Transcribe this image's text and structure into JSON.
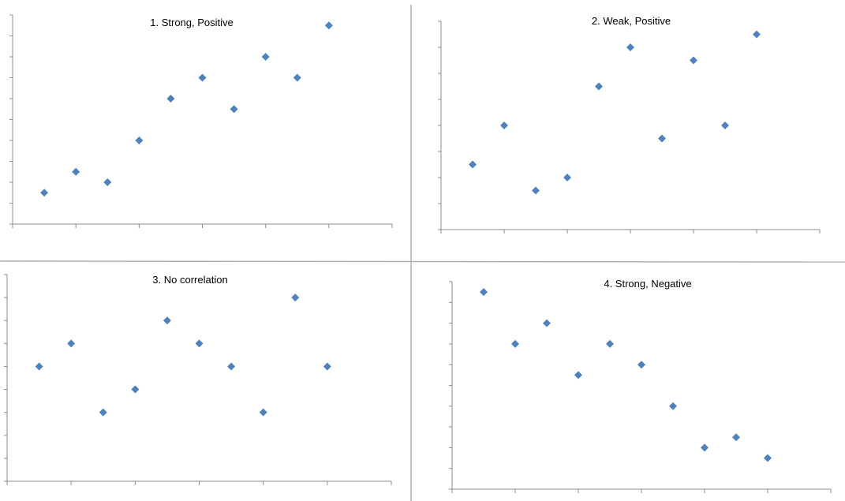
{
  "marker_color": "#4f81bd",
  "chart_data": [
    {
      "type": "scatter",
      "title": "1. Strong, Positive",
      "xlabel": "",
      "ylabel": "",
      "grid": false,
      "xlim": [
        0,
        12
      ],
      "ylim": [
        0,
        10
      ],
      "x": [
        1,
        2,
        3,
        4,
        5,
        6,
        7,
        8,
        9,
        10
      ],
      "y": [
        1.5,
        2.5,
        2,
        4,
        6,
        7,
        5.5,
        8,
        7,
        9.5
      ]
    },
    {
      "type": "scatter",
      "title": "2. Weak, Positive",
      "xlabel": "",
      "ylabel": "",
      "grid": false,
      "xlim": [
        0,
        12
      ],
      "ylim": [
        0,
        8
      ],
      "x": [
        1,
        2,
        3,
        4,
        5,
        6,
        7,
        8,
        9,
        10
      ],
      "y": [
        2.5,
        4,
        1.5,
        2,
        5.5,
        7,
        3.5,
        6.5,
        4,
        7.5
      ]
    },
    {
      "type": "scatter",
      "title": "3. No correlation",
      "xlabel": "",
      "ylabel": "",
      "grid": false,
      "xlim": [
        0,
        12
      ],
      "ylim": [
        0,
        9
      ],
      "x": [
        1,
        2,
        3,
        4,
        5,
        6,
        7,
        8,
        9,
        10
      ],
      "y": [
        5,
        6,
        3,
        4,
        7,
        6,
        5,
        3,
        8,
        5
      ]
    },
    {
      "type": "scatter",
      "title": "4. Strong, Negative",
      "xlabel": "",
      "ylabel": "",
      "grid": false,
      "xlim": [
        0,
        12
      ],
      "ylim": [
        0,
        10
      ],
      "x": [
        1,
        2,
        3,
        4,
        5,
        6,
        7,
        8,
        9,
        10
      ],
      "y": [
        9.5,
        7,
        8,
        5.5,
        7,
        6,
        4,
        2,
        2.5,
        1.5
      ]
    }
  ]
}
